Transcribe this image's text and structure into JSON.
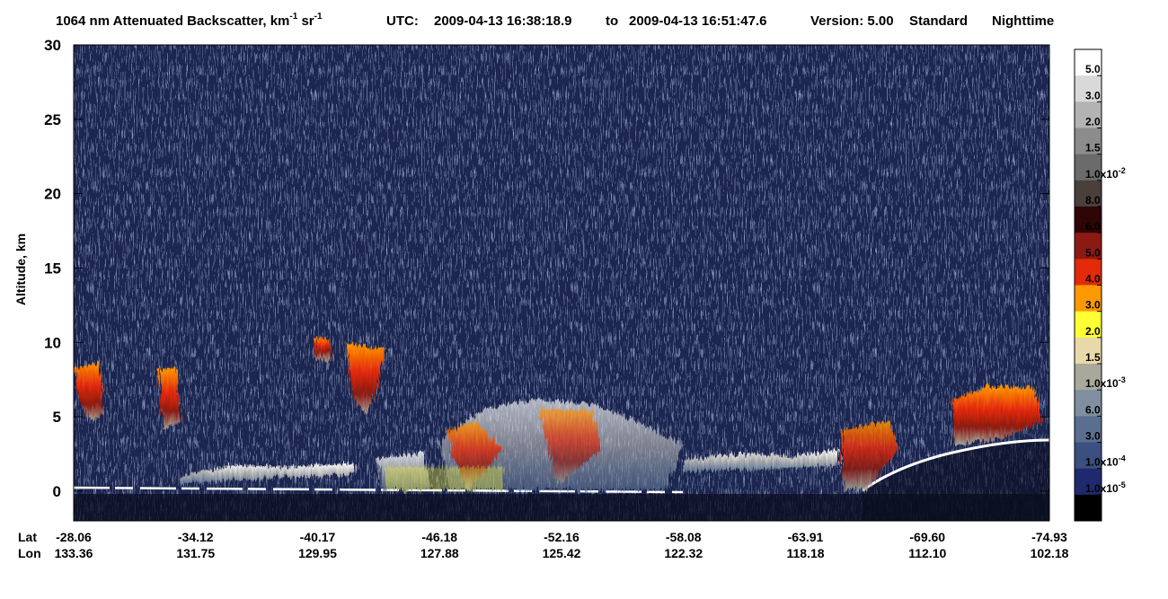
{
  "header": {
    "title": [
      "1064 nm Attenuated Backscatter, km",
      "-1",
      " sr",
      "-1"
    ],
    "utc_label": "UTC:",
    "start": "2009-04-13 16:38:18.9",
    "to": "to",
    "end": "2009-04-13 16:51:47.6",
    "version": "Version: 5.00",
    "product": "Standard",
    "mode": "Nighttime"
  },
  "chart_data": {
    "type": "heatmap",
    "y_label": "Altitude, km",
    "ylim": [
      -2,
      30
    ],
    "yticks": [
      0,
      5,
      10,
      15,
      20,
      25,
      30
    ],
    "x_rows": [
      {
        "name": "Lat",
        "labels": [
          "-28.06",
          "-34.12",
          "-40.17",
          "-46.18",
          "-52.16",
          "-58.08",
          "-63.91",
          "-69.60",
          "-74.93"
        ]
      },
      {
        "name": "Lon",
        "labels": [
          "133.36",
          "131.75",
          "129.95",
          "127.88",
          "125.42",
          "122.32",
          "118.18",
          "112.10",
          "102.18"
        ]
      }
    ],
    "colorbar": {
      "colors": [
        "#ffffff",
        "#d9d9d9",
        "#b3b3b3",
        "#8c8c8c",
        "#6b6b6b",
        "#4a3f3b",
        "#2e0606",
        "#8c1a12",
        "#e32a0b",
        "#ff9900",
        "#ffff33",
        "#e8d9a8",
        "#a8a89b",
        "#7f8fa0",
        "#5a6f8f",
        "#3a5080",
        "#1f2a6e",
        "#000000"
      ],
      "labels": [
        [
          "5.0"
        ],
        [
          "3.0"
        ],
        [
          "2.0"
        ],
        [
          "1.5"
        ],
        [
          "1.0x10",
          "-2"
        ],
        [
          "8.0"
        ],
        [
          "6.0"
        ],
        [
          "5.0"
        ],
        [
          "4.0"
        ],
        [
          "3.0"
        ],
        [
          "2.0"
        ],
        [
          "1.5"
        ],
        [
          "1.0x10",
          "-3"
        ],
        [
          "6.0"
        ],
        [
          "3.0"
        ],
        [
          "1.0x10",
          "-4"
        ],
        [
          "1.0x10",
          "-5"
        ]
      ]
    }
  }
}
